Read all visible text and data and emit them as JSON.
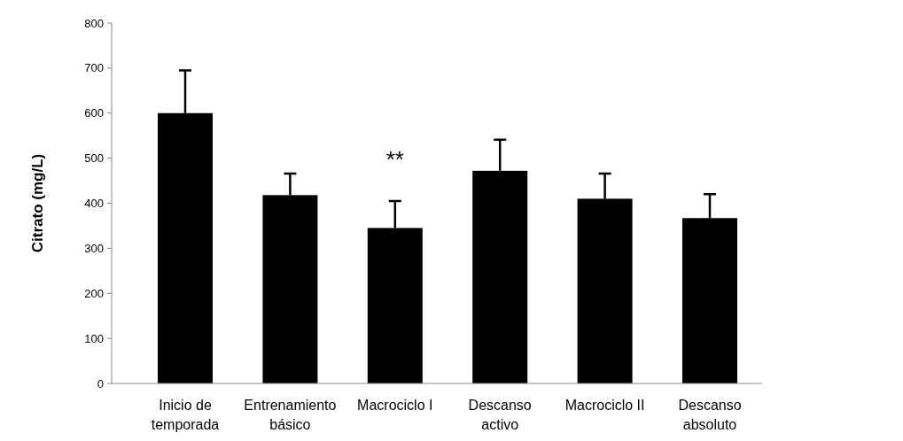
{
  "chart_data": {
    "type": "bar",
    "ylabel": "Citrato (mg/L)",
    "categories": [
      "Inicio de temporada",
      "Entrenamiento básico",
      "Macrociclo I",
      "Descanso activo",
      "Macrociclo II",
      "Descanso absoluto"
    ],
    "values": [
      600,
      418,
      345,
      472,
      410,
      367
    ],
    "errors": [
      [
        600,
        695
      ],
      [
        418,
        466
      ],
      [
        345,
        405
      ],
      [
        472,
        541
      ],
      [
        410,
        466
      ],
      [
        367,
        420
      ]
    ],
    "color": "#000000",
    "ylim": [
      0,
      800
    ],
    "yticks": [
      0,
      100,
      200,
      300,
      400,
      500,
      600,
      700,
      800
    ],
    "annotations": [
      {
        "text": "**",
        "x": "Macrociclo I",
        "y": 345
      }
    ],
    "grid": false
  }
}
